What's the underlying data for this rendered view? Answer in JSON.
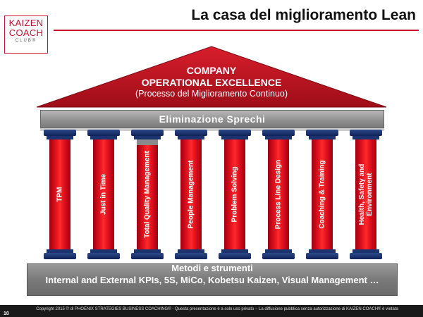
{
  "header": {
    "title": "La casa del miglioramento Lean",
    "logo": {
      "line1": "KAIZEN",
      "line2": "COACH",
      "line3": "CLUB®"
    }
  },
  "roof": {
    "line1": "COMPANY",
    "line2": "OPERATIONAL EXCELLENCE",
    "line3": "(Processo del Miglioramento Continuo)"
  },
  "beam": {
    "label": "Eliminazione Sprechi"
  },
  "pillars": [
    {
      "label": "TPM"
    },
    {
      "label": "Just in Time"
    },
    {
      "label": "Total Quality Management"
    },
    {
      "label": "People Management"
    },
    {
      "label": "Problem Solving"
    },
    {
      "label": "Process  Line Design"
    },
    {
      "label": "Coaching & Training"
    },
    {
      "label": "Health, Safety and Environment"
    }
  ],
  "base": {
    "title": "Metodi e strumenti",
    "text": "Internal and External KPIs, 5S, MiCo, Kobetsu Kaizen, Visual Management …"
  },
  "footer": {
    "page": "10",
    "copyright": "Copyright 2015 © di PHOENIX STRATEGIES BUSINESS COACHING® - Questa presentazione è a solo uso privato – La diffusione pubblica senza autorizzazione di KAIZEN COACH® è vietata"
  },
  "colors": {
    "accent": "#c8102e",
    "pillar_red": "#e0101e",
    "pillar_blue": "#1b3470",
    "beam_gray": "#8e8e8e"
  }
}
